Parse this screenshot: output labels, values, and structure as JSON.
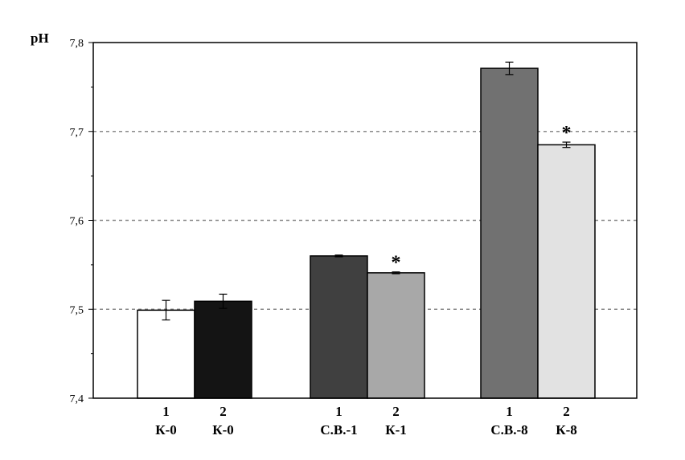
{
  "chart_data": {
    "type": "bar",
    "ylabel": "pH",
    "ylim": [
      7.4,
      7.8
    ],
    "yticks": [
      "7,4",
      "7,5",
      "7,6",
      "7,7",
      "7,8"
    ],
    "ytick_values": [
      7.4,
      7.5,
      7.6,
      7.7,
      7.8
    ],
    "grid": "horizontal dashed",
    "groups": [
      {
        "bars": [
          {
            "num": "1",
            "name": "К-0",
            "value": 7.499,
            "error": 0.011,
            "color": "#ffffff",
            "star": ""
          },
          {
            "num": "2",
            "name": "К-0",
            "value": 7.509,
            "error": 0.008,
            "color": "#141414",
            "star": ""
          }
        ]
      },
      {
        "bars": [
          {
            "num": "1",
            "name": "С.В.-1",
            "value": 7.56,
            "error": 0.001,
            "color": "#404040",
            "star": ""
          },
          {
            "num": "2",
            "name": "К-1",
            "value": 7.541,
            "error": 0.001,
            "color": "#a8a8a8",
            "star": "*"
          }
        ]
      },
      {
        "bars": [
          {
            "num": "1",
            "name": "С.В.-8",
            "value": 7.771,
            "error": 0.007,
            "color": "#717171",
            "star": ""
          },
          {
            "num": "2",
            "name": "К-8",
            "value": 7.685,
            "error": 0.003,
            "color": "#e2e2e2",
            "star": "*"
          }
        ]
      }
    ]
  }
}
